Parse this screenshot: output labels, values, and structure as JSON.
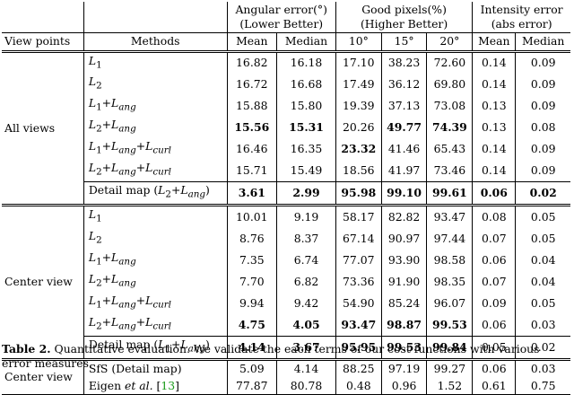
{
  "headers": {
    "angular_error": "Angular error(°)",
    "angular_error_sub": "(Lower Better)",
    "good_pixels": "Good pixels(%)",
    "good_pixels_sub": "(Higher Better)",
    "intensity_error": "Intensity error",
    "intensity_error_sub": "(abs error)",
    "view_points": "View points",
    "methods": "Methods",
    "mean": "Mean",
    "median": "Median",
    "deg10": "10°",
    "deg15": "15°",
    "deg20": "20°",
    "mean2": "Mean",
    "median2": "Median"
  },
  "groups": {
    "all_views": "All views",
    "center_view": "Center view",
    "center_view2": "Center view"
  },
  "rows": [
    {
      "method": "L1",
      "v": [
        "16.82",
        "16.18",
        "17.10",
        "38.23",
        "72.60",
        "0.14",
        "0.09"
      ]
    },
    {
      "method": "L2",
      "v": [
        "16.72",
        "16.68",
        "17.49",
        "36.12",
        "69.80",
        "0.14",
        "0.09"
      ]
    },
    {
      "method": "L1+Lang",
      "v": [
        "15.88",
        "15.80",
        "19.39",
        "37.13",
        "73.08",
        "0.13",
        "0.09"
      ]
    },
    {
      "method": "L2+Lang",
      "v": [
        "15.56",
        "15.31",
        "20.26",
        "49.77",
        "74.39",
        "0.13",
        "0.08"
      ]
    },
    {
      "method": "L1+Lang+Lcurl",
      "v": [
        "16.46",
        "16.35",
        "23.32",
        "41.46",
        "65.43",
        "0.14",
        "0.09"
      ]
    },
    {
      "method": "L2+Lang+Lcurl",
      "v": [
        "15.71",
        "15.49",
        "18.56",
        "41.97",
        "73.46",
        "0.14",
        "0.09"
      ]
    },
    {
      "method": "Detail map (L2+Lang)",
      "v": [
        "3.61",
        "2.99",
        "95.98",
        "99.10",
        "99.61",
        "0.06",
        "0.02"
      ]
    },
    {
      "method": "L1",
      "v": [
        "10.01",
        "9.19",
        "58.17",
        "82.82",
        "93.47",
        "0.08",
        "0.05"
      ]
    },
    {
      "method": "L2",
      "v": [
        "8.76",
        "8.37",
        "67.14",
        "90.97",
        "97.44",
        "0.07",
        "0.05"
      ]
    },
    {
      "method": "L1+Lang",
      "v": [
        "7.35",
        "6.74",
        "77.07",
        "93.90",
        "98.58",
        "0.06",
        "0.04"
      ]
    },
    {
      "method": "L2+Lang",
      "v": [
        "7.70",
        "6.82",
        "73.36",
        "91.90",
        "98.35",
        "0.07",
        "0.04"
      ]
    },
    {
      "method": "L1+Lang+Lcurl",
      "v": [
        "9.94",
        "9.42",
        "54.90",
        "85.24",
        "96.07",
        "0.09",
        "0.05"
      ]
    },
    {
      "method": "L2+Lang+Lcurl",
      "v": [
        "4.75",
        "4.05",
        "93.47",
        "98.87",
        "99.53",
        "0.06",
        "0.03"
      ]
    },
    {
      "method": "Detail map (L1+Lang)",
      "v": [
        "4.14",
        "3.67",
        "95.95",
        "99.53",
        "99.84",
        "0.05",
        "0.02"
      ]
    },
    {
      "method": "SfS (Detail map)",
      "v": [
        "5.09",
        "4.14",
        "88.25",
        "97.19",
        "99.27",
        "0.06",
        "0.03"
      ]
    },
    {
      "method": "Eigen et al. [13]",
      "v": [
        "77.87",
        "80.78",
        "0.48",
        "0.96",
        "1.52",
        "0.61",
        "0.75"
      ]
    }
  ],
  "caption": {
    "label": "Table 2.",
    "text": "Quantitative evaluation. We validate the each terms of our cost functions with various error measures.",
    "ref": "13"
  }
}
